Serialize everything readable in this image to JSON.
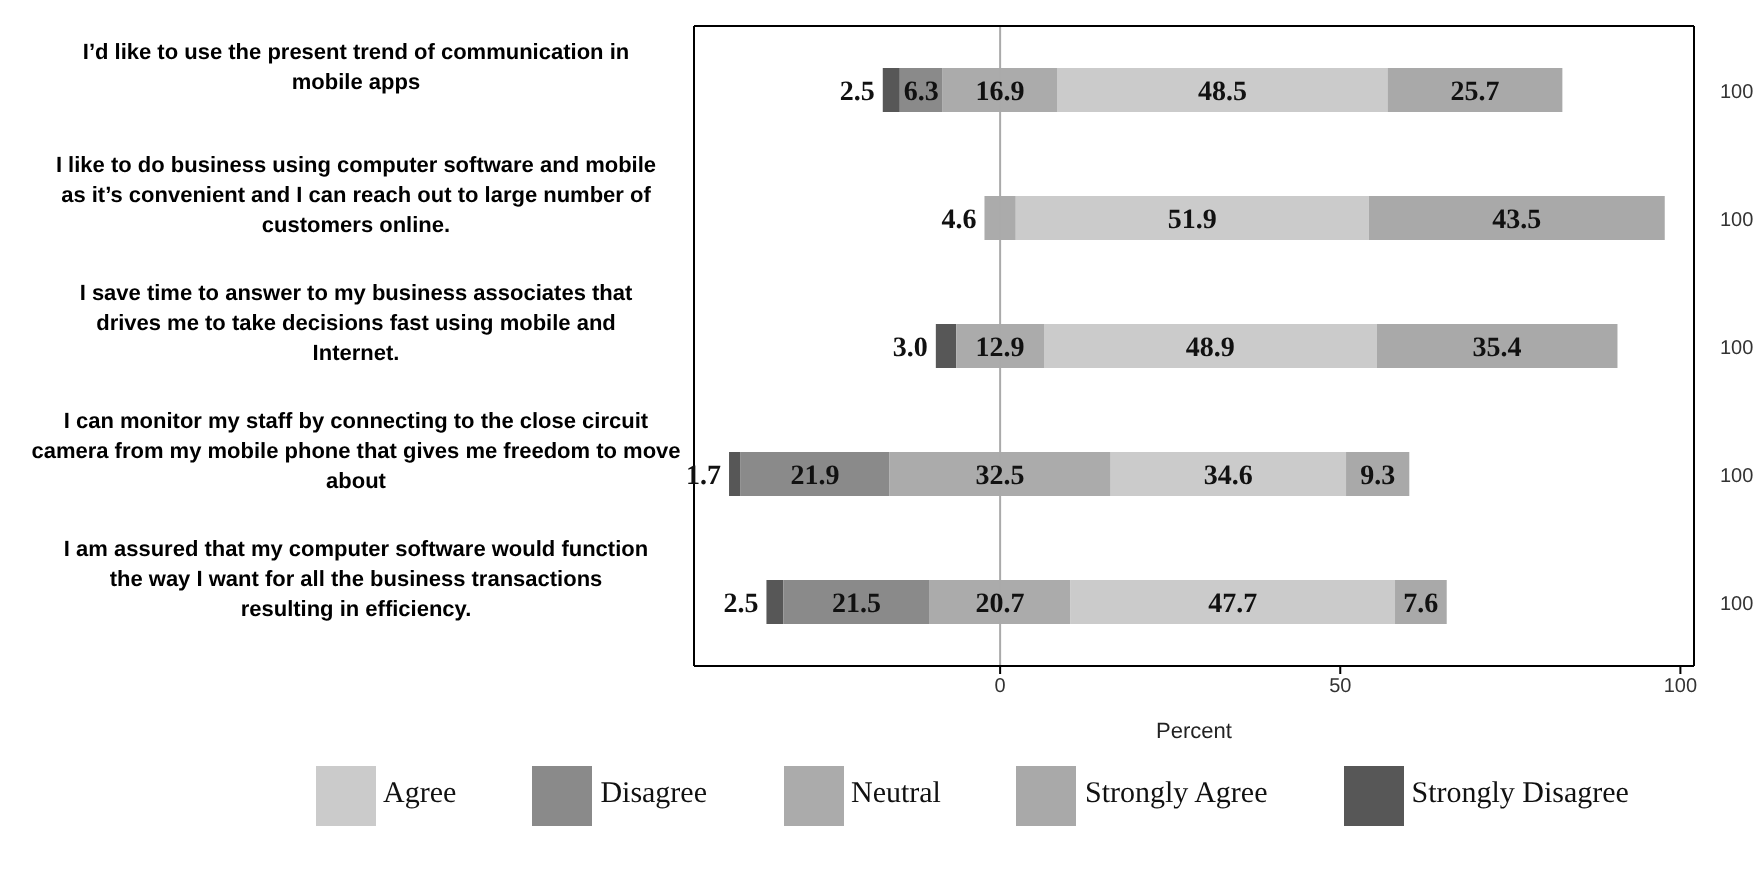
{
  "chart_data": {
    "type": "bar",
    "orientation": "horizontal",
    "xlabel": "Percent",
    "categories": [
      "I’d like to use the present trend of communication in mobile apps",
      "I like to do business using computer software and mobile as it’s convenient and I can reach out to large number of customers online.",
      "I save time to answer to my business associates that drives me to take decisions fast using mobile and Internet.",
      "I can monitor my staff by connecting to the close circuit camera from my mobile phone that gives me freedom to move about",
      "I am assured  that my computer software would function the way I want for all the business transactions resulting in efficiency."
    ],
    "series": [
      {
        "name": "Strongly Disagree",
        "color": "#575757",
        "values": [
          2.5,
          null,
          3.0,
          1.7,
          2.5
        ],
        "base": [
          -17.25,
          null,
          -9.45,
          -39.85,
          -34.35
        ],
        "value_labels": [
          "2.5",
          null,
          "3.0",
          "1.7",
          "2.5"
        ]
      },
      {
        "name": "Disagree",
        "color": "#8a8a8a",
        "values": [
          6.3,
          null,
          null,
          21.9,
          21.5
        ],
        "base": [
          -14.75,
          null,
          null,
          -38.15,
          -31.85
        ],
        "value_labels": [
          "6.3",
          null,
          null,
          "21.9",
          "21.5"
        ]
      },
      {
        "name": "Neutral",
        "color": "#ababab",
        "values": [
          16.9,
          4.6,
          12.9,
          32.5,
          20.7
        ],
        "base": [
          -8.45,
          -2.3,
          -6.45,
          -16.25,
          -10.35
        ],
        "value_labels": [
          "16.9",
          "4.6",
          "12.9",
          "32.5",
          "20.7"
        ]
      },
      {
        "name": "Agree",
        "color": "#cbcbcb",
        "values": [
          48.5,
          51.9,
          48.9,
          34.6,
          47.7
        ],
        "base": [
          8.45,
          2.3,
          6.45,
          16.25,
          10.35
        ],
        "value_labels": [
          "48.5",
          "51.9",
          "48.9",
          "34.6",
          "47.7"
        ]
      },
      {
        "name": "Strongly Agree",
        "color": "#a9a9a9",
        "values": [
          25.7,
          43.5,
          35.4,
          9.3,
          7.6
        ],
        "base": [
          56.95,
          54.2,
          55.35,
          50.85,
          58.05
        ],
        "value_labels": [
          "25.7",
          "43.5",
          "35.4",
          "9.3",
          "7.6"
        ]
      }
    ],
    "annotations": [
      "100",
      "100",
      "100",
      "100",
      "100"
    ],
    "xlim": [
      -45,
      102
    ],
    "xticks": [
      0,
      50,
      100
    ],
    "ref_lines": [
      {
        "axis": "x",
        "value": 0,
        "color": "#aaaaaa"
      }
    ],
    "legend": "bottom"
  }
}
